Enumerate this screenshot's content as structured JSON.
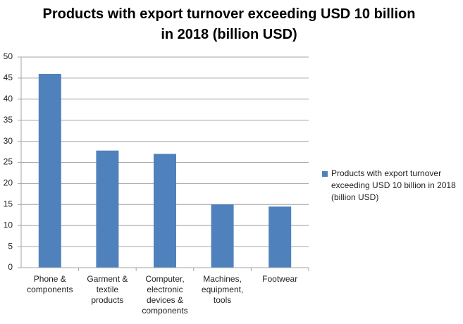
{
  "chart_data": {
    "type": "bar",
    "title": "Products with export turnover exceeding USD 10 billion in 2018 (billion USD)",
    "categories": [
      "Phone & components",
      "Garment & textile products",
      "Computer, electronic devices & components",
      "Machines, equipment, tools",
      "Footwear"
    ],
    "series": [
      {
        "name": "Products with export turnover exceeding USD 10 billion in 2018 (billion USD)",
        "color": "#4f81bd",
        "values": [
          46,
          27.8,
          27,
          15,
          14.5
        ]
      }
    ],
    "ylim": [
      0,
      50
    ],
    "yticks": [
      0,
      5,
      10,
      15,
      20,
      25,
      30,
      35,
      40,
      45,
      50
    ],
    "grid": true,
    "legend": "right"
  }
}
